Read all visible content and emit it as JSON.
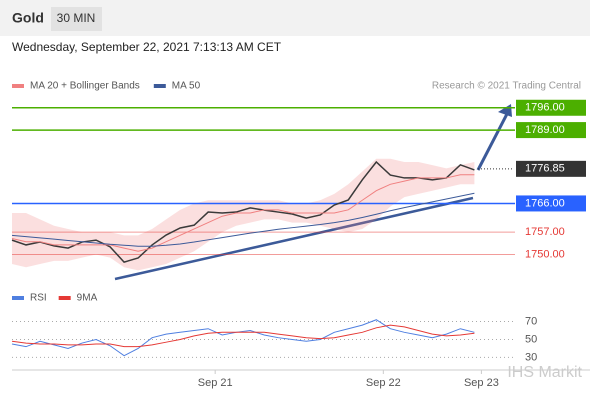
{
  "header": {
    "title": "Gold",
    "tab": "30 MIN",
    "date": "Wednesday, September 22, 2021 7:13:13 AM CET",
    "credit": "Research © 2021 Trading Central",
    "watermark": "IHS Markit"
  },
  "chart_data": [
    {
      "type": "line",
      "x": [
        0,
        4,
        8,
        12,
        16,
        20,
        24,
        28,
        32,
        36,
        40,
        44,
        48,
        52,
        56,
        60,
        64,
        68,
        72,
        76,
        80,
        84,
        88,
        92,
        96,
        100,
        104,
        108,
        112,
        116,
        120,
        124,
        128,
        132
      ],
      "xlim": [
        0,
        165
      ],
      "xticks": [
        {
          "value": 58,
          "label": "Sep 21"
        },
        {
          "value": 106,
          "label": "Sep 22"
        },
        {
          "value": 134,
          "label": "Sep 23"
        }
      ],
      "ylim": [
        1742,
        1800
      ],
      "series": [
        {
          "name": "Price",
          "color": "#3a3a3a",
          "values": [
            1754.5,
            1753.0,
            1753.9,
            1752.7,
            1752.0,
            1753.9,
            1754.5,
            1752.4,
            1747.6,
            1748.9,
            1753.0,
            1756.1,
            1758.3,
            1759.2,
            1763.3,
            1763.0,
            1763.3,
            1764.6,
            1763.9,
            1763.3,
            1762.7,
            1761.4,
            1762.4,
            1765.5,
            1767.1,
            1773.4,
            1779.0,
            1774.9,
            1774.0,
            1774.0,
            1773.4,
            1774.0,
            1778.1,
            1776.5
          ]
        },
        {
          "name": "MA 20 + Bollinger Bands",
          "color": "#f08080",
          "upper": [
            1763,
            1763,
            1761,
            1759,
            1758,
            1757,
            1757,
            1757,
            1756,
            1756,
            1758,
            1761,
            1764,
            1766,
            1767,
            1767,
            1767,
            1767,
            1767,
            1767,
            1766,
            1766,
            1767,
            1769,
            1772,
            1776,
            1780,
            1780,
            1779,
            1779,
            1778,
            1777,
            1778,
            1779
          ],
          "values": [
            1755,
            1754,
            1754,
            1753,
            1753,
            1753,
            1753,
            1753,
            1752,
            1751,
            1752,
            1754,
            1756,
            1758,
            1760,
            1762,
            1763,
            1763,
            1764,
            1764,
            1763,
            1763,
            1763,
            1763,
            1764,
            1767,
            1770,
            1772,
            1773,
            1774,
            1774,
            1774,
            1775,
            1775
          ],
          "lower": [
            1747,
            1746,
            1747,
            1748,
            1748,
            1749,
            1750,
            1749,
            1746,
            1745,
            1746,
            1747,
            1749,
            1751,
            1754,
            1757,
            1759,
            1760,
            1761,
            1761,
            1760,
            1760,
            1759,
            1758,
            1757,
            1758,
            1761,
            1765,
            1768,
            1769,
            1770,
            1771,
            1772,
            1772
          ]
        },
        {
          "name": "MA 50",
          "color": "#3c5a99",
          "values": [
            1756.0,
            1755.6,
            1755.2,
            1754.8,
            1754.4,
            1754.0,
            1753.6,
            1753.2,
            1752.9,
            1752.6,
            1752.6,
            1752.9,
            1753.3,
            1753.9,
            1754.6,
            1755.3,
            1756.0,
            1756.7,
            1757.3,
            1757.9,
            1758.4,
            1758.9,
            1759.4,
            1760.0,
            1760.7,
            1761.6,
            1762.6,
            1763.7,
            1764.7,
            1765.6,
            1766.5,
            1767.4,
            1768.3,
            1769.2
          ]
        }
      ],
      "levels": [
        {
          "value": 1796,
          "label": "1796.00",
          "color": "#4caf00",
          "style": "box"
        },
        {
          "value": 1789,
          "label": "1789.00",
          "color": "#4caf00",
          "style": "box"
        },
        {
          "value": 1776.85,
          "label": "1776.85",
          "color": "#333333",
          "style": "current"
        },
        {
          "value": 1766,
          "label": "1766.00",
          "color": "#2962ff",
          "style": "box"
        },
        {
          "value": 1757,
          "label": "1757.00",
          "color": "#e53935",
          "style": "text"
        },
        {
          "value": 1750,
          "label": "1750.00",
          "color": "#e53935",
          "style": "text"
        }
      ]
    },
    {
      "type": "line",
      "ylim": [
        16,
        94
      ],
      "yticks": [
        70,
        50,
        30
      ],
      "series": [
        {
          "name": "RSI",
          "color": "#4f7fe0",
          "values": [
            45,
            42,
            48,
            44,
            40,
            46,
            50,
            43,
            32,
            40,
            52,
            56,
            58,
            60,
            62,
            55,
            58,
            60,
            55,
            52,
            50,
            48,
            50,
            58,
            62,
            66,
            72,
            62,
            58,
            55,
            52,
            56,
            62,
            58
          ]
        },
        {
          "name": "9MA",
          "color": "#e53935",
          "values": [
            48,
            46,
            45,
            45,
            44,
            44,
            45,
            45,
            42,
            42,
            44,
            47,
            50,
            54,
            57,
            58,
            58,
            58,
            58,
            56,
            54,
            52,
            51,
            52,
            55,
            58,
            63,
            66,
            64,
            60,
            56,
            54,
            55,
            57
          ]
        }
      ]
    }
  ]
}
